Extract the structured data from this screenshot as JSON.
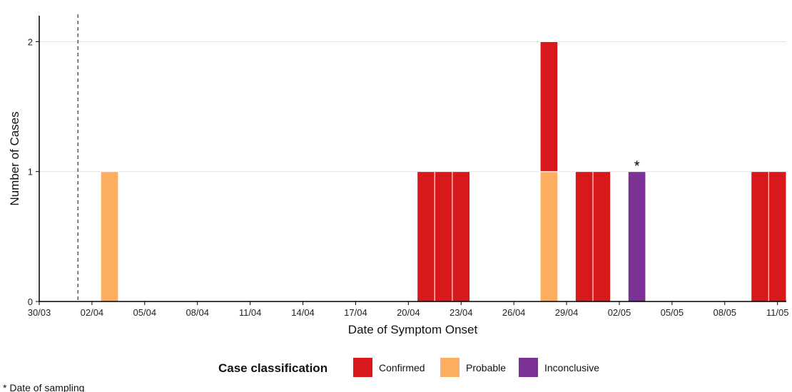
{
  "chart_data": {
    "type": "bar",
    "stacked": true,
    "title": "",
    "xlabel": "Date of Symptom Onset",
    "ylabel": "Number of Cases",
    "x_ticks": [
      "30/03",
      "02/04",
      "05/04",
      "08/04",
      "11/04",
      "14/04",
      "17/04",
      "20/04",
      "23/04",
      "26/04",
      "29/04",
      "02/05",
      "05/05",
      "08/05",
      "11/05"
    ],
    "y_ticks": [
      "0",
      "1",
      "2"
    ],
    "ylim": [
      0,
      2.2
    ],
    "xlim": [
      "30/03",
      "11/05"
    ],
    "grid": "horizontal",
    "series": [
      {
        "name": "Confirmed",
        "color": "#d7191c",
        "points": [
          [
            "21/04",
            1
          ],
          [
            "22/04",
            1
          ],
          [
            "23/04",
            1
          ],
          [
            "28/04",
            1
          ],
          [
            "30/04",
            1
          ],
          [
            "01/05",
            1
          ],
          [
            "10/05",
            1
          ],
          [
            "11/05",
            1
          ]
        ]
      },
      {
        "name": "Probable",
        "color": "#fdae61",
        "points": [
          [
            "03/04",
            1
          ],
          [
            "28/04",
            1
          ]
        ]
      },
      {
        "name": "Inconclusive",
        "color": "#7b3294",
        "points": [
          [
            "03/05",
            1
          ]
        ]
      }
    ],
    "stack_order": [
      "Probable",
      "Confirmed",
      "Inconclusive"
    ],
    "reference_line": {
      "date": "01/04",
      "style": "dashed"
    },
    "annotations": [
      {
        "date": "03/05",
        "text": "*"
      }
    ],
    "legend": {
      "title": "Case classification",
      "placement": "bottom"
    },
    "footnote": "* Date of sampling"
  }
}
